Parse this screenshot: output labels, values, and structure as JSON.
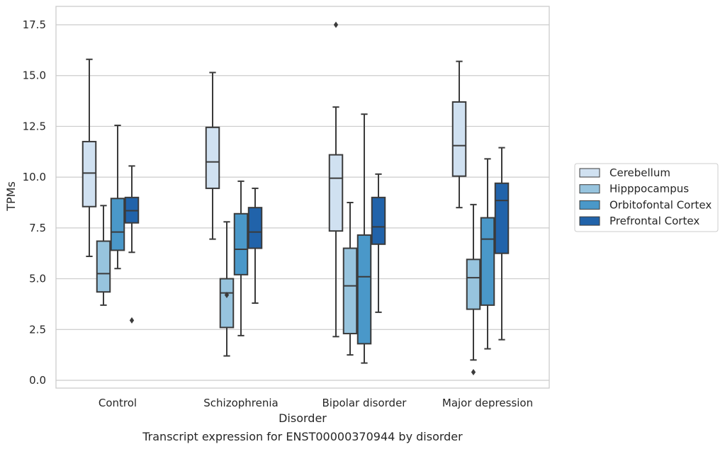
{
  "chart_data": {
    "type": "boxplot",
    "xlabel": "Disorder",
    "ylabel": "TPMs",
    "caption": "Transcript expression for ENST00000370944 by disorder",
    "ylim": [
      -0.4,
      18.3
    ],
    "y_ticks": [
      "0.0",
      "2.5",
      "5.0",
      "7.5",
      "10.0",
      "12.5",
      "15.0",
      "17.5"
    ],
    "y_tick_values": [
      0,
      2.5,
      5,
      7.5,
      10,
      12.5,
      15,
      17.5
    ],
    "grid": "horizontal",
    "legend_position": "right",
    "categories": [
      "Control",
      "Schizophrenia",
      "Bipolar disorder",
      "Major depression"
    ],
    "series": [
      {
        "name": "Cerebellum",
        "color": "#d0e1f1",
        "boxes": [
          {
            "whislo": 6.1,
            "q1": 8.55,
            "med": 10.2,
            "q3": 11.75,
            "whishi": 15.8,
            "fliers": []
          },
          {
            "whislo": 6.95,
            "q1": 9.45,
            "med": 10.75,
            "q3": 12.45,
            "whishi": 15.15,
            "fliers": []
          },
          {
            "whislo": 2.15,
            "q1": 7.35,
            "med": 9.95,
            "q3": 11.1,
            "whishi": 13.45,
            "fliers": [
              17.5
            ]
          },
          {
            "whislo": 8.5,
            "q1": 10.05,
            "med": 11.55,
            "q3": 13.7,
            "whishi": 15.7,
            "fliers": []
          }
        ]
      },
      {
        "name": "Hipppocampus",
        "color": "#97c4de",
        "boxes": [
          {
            "whislo": 3.7,
            "q1": 4.35,
            "med": 5.25,
            "q3": 6.85,
            "whishi": 8.6,
            "fliers": []
          },
          {
            "whislo": 1.2,
            "q1": 2.6,
            "med": 4.3,
            "q3": 5.0,
            "whishi": 7.8,
            "fliers": [
              4.2
            ]
          },
          {
            "whislo": 1.25,
            "q1": 2.3,
            "med": 4.65,
            "q3": 6.5,
            "whishi": 8.75,
            "fliers": []
          },
          {
            "whislo": 1.0,
            "q1": 3.5,
            "med": 5.05,
            "q3": 5.95,
            "whishi": 8.65,
            "fliers": [
              0.4
            ]
          }
        ]
      },
      {
        "name": "Orbitofontal Cortex",
        "color": "#4a98c9",
        "boxes": [
          {
            "whislo": 5.5,
            "q1": 6.4,
            "med": 7.3,
            "q3": 8.95,
            "whishi": 12.55,
            "fliers": []
          },
          {
            "whislo": 2.2,
            "q1": 5.2,
            "med": 6.45,
            "q3": 8.2,
            "whishi": 9.8,
            "fliers": []
          },
          {
            "whislo": 0.85,
            "q1": 1.8,
            "med": 5.1,
            "q3": 7.15,
            "whishi": 13.1,
            "fliers": []
          },
          {
            "whislo": 1.55,
            "q1": 3.7,
            "med": 6.95,
            "q3": 8.0,
            "whishi": 10.9,
            "fliers": []
          }
        ]
      },
      {
        "name": "Prefrontal Cortex",
        "color": "#2163aa",
        "boxes": [
          {
            "whislo": 6.3,
            "q1": 7.75,
            "med": 8.35,
            "q3": 9.0,
            "whishi": 10.55,
            "fliers": [
              2.95
            ]
          },
          {
            "whislo": 3.8,
            "q1": 6.5,
            "med": 7.3,
            "q3": 8.5,
            "whishi": 9.45,
            "fliers": []
          },
          {
            "whislo": 3.35,
            "q1": 6.7,
            "med": 7.55,
            "q3": 9.0,
            "whishi": 10.15,
            "fliers": []
          },
          {
            "whislo": 2.0,
            "q1": 6.25,
            "med": 8.85,
            "q3": 9.7,
            "whishi": 11.45,
            "fliers": []
          }
        ]
      }
    ]
  }
}
